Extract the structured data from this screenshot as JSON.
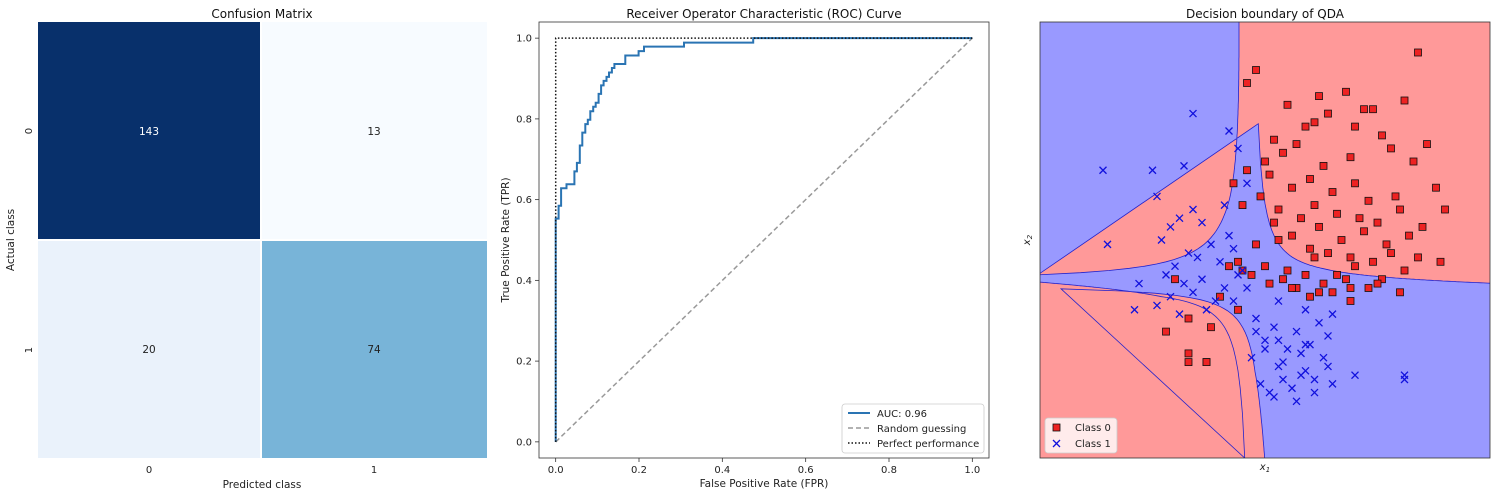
{
  "colors": {
    "dark_blue": "#08306b",
    "mid_blue": "#78b4d8",
    "light_blue": "#eaf2fb",
    "lightest_blue": "#f7fbff",
    "roc": "#2a74b3",
    "region_blue": "#9999ff",
    "region_red": "#ff9999"
  },
  "chart_data": [
    {
      "type": "heatmap",
      "title": "Confusion Matrix",
      "xlabel": "Predicted class",
      "ylabel": "Actual class",
      "x_ticklabels": [
        "0",
        "1"
      ],
      "y_ticklabels": [
        "0",
        "1"
      ],
      "matrix": [
        [
          143,
          13
        ],
        [
          20,
          74
        ]
      ]
    },
    {
      "type": "line",
      "title": "Receiver Operator Characteristic (ROC) Curve",
      "xlabel": "False Positive Rate (FPR)",
      "ylabel": "True Positive Rate (TPR)",
      "xlim": [
        -0.04,
        1.04
      ],
      "ylim": [
        -0.04,
        1.04
      ],
      "xticks": [
        "0.0",
        "0.2",
        "0.4",
        "0.6",
        "0.8",
        "1.0"
      ],
      "yticks": [
        "0.0",
        "0.2",
        "0.4",
        "0.6",
        "0.8",
        "1.0"
      ],
      "legend_position": "lower-right",
      "series": [
        {
          "name": "AUC: 0.96",
          "style": "solid",
          "x": [
            0,
            0,
            0.007,
            0.007,
            0.013,
            0.013,
            0.026,
            0.026,
            0.045,
            0.045,
            0.051,
            0.051,
            0.058,
            0.058,
            0.064,
            0.064,
            0.071,
            0.071,
            0.077,
            0.077,
            0.083,
            0.083,
            0.09,
            0.09,
            0.096,
            0.096,
            0.103,
            0.103,
            0.109,
            0.109,
            0.115,
            0.115,
            0.122,
            0.122,
            0.128,
            0.128,
            0.135,
            0.135,
            0.141,
            0.141,
            0.154,
            0.154,
            0.167,
            0.167,
            0.199,
            0.199,
            0.212,
            0.212,
            0.25,
            0.25,
            0.308,
            0.308,
            0.474,
            0.474,
            1.0
          ],
          "y": [
            0,
            0.553,
            0.553,
            0.585,
            0.585,
            0.628,
            0.628,
            0.638,
            0.638,
            0.67,
            0.67,
            0.691,
            0.691,
            0.734,
            0.734,
            0.766,
            0.766,
            0.787,
            0.787,
            0.798,
            0.798,
            0.819,
            0.819,
            0.83,
            0.83,
            0.84,
            0.84,
            0.862,
            0.862,
            0.883,
            0.883,
            0.894,
            0.894,
            0.904,
            0.904,
            0.915,
            0.915,
            0.926,
            0.926,
            0.936,
            0.936,
            0.936,
            0.936,
            0.957,
            0.957,
            0.968,
            0.968,
            0.979,
            0.979,
            0.979,
            0.979,
            0.989,
            0.989,
            1.0,
            1.0
          ]
        },
        {
          "name": "Random guessing",
          "style": "dashed",
          "x": [
            0,
            1
          ],
          "y": [
            0,
            1
          ]
        },
        {
          "name": "Perfect performance",
          "style": "dotted",
          "x": [
            0,
            0,
            1
          ],
          "y": [
            0,
            1,
            1
          ]
        }
      ]
    },
    {
      "type": "scatter",
      "title": "Decision boundary of QDA",
      "xlabel": "x",
      "xlabel_sub": "1",
      "ylabel": "x",
      "ylabel_sub": "2",
      "xlim": [
        0,
        10
      ],
      "ylim": [
        0,
        10
      ],
      "boundary_center": [
        4.7,
        4.0
      ],
      "legend_position": "lower-left",
      "series": [
        {
          "name": "Class 0",
          "marker": "square",
          "x": [
            8.4,
            4.6,
            4.8,
            6.2,
            6.1,
            6.8,
            7.4,
            7.0,
            5.5,
            6.4,
            5.2,
            5.9,
            7.2,
            7.6,
            8.1,
            5.0,
            5.4,
            5.7,
            6.3,
            6.9,
            7.8,
            8.3,
            8.6,
            4.3,
            4.6,
            5.1,
            5.6,
            6.0,
            6.5,
            7.0,
            7.3,
            7.9,
            8.8,
            9.0,
            4.5,
            4.9,
            5.3,
            5.8,
            6.1,
            6.6,
            7.1,
            7.5,
            8.0,
            8.5,
            5.2,
            5.6,
            6.2,
            6.7,
            7.2,
            7.7,
            8.2,
            4.8,
            5.3,
            6.0,
            6.4,
            6.9,
            7.4,
            7.8,
            8.4,
            4.4,
            5.0,
            5.5,
            6.1,
            6.6,
            7.0,
            7.6,
            8.1,
            8.9,
            4.2,
            4.7,
            5.4,
            5.9,
            6.3,
            6.8,
            7.3,
            5.7,
            6.2,
            6.9,
            7.5,
            8.0,
            4.5,
            5.1,
            5.6,
            6.0,
            6.5,
            6.9,
            3.0,
            4.0,
            4.4,
            3.3,
            3.8,
            2.8,
            3.3,
            3.7,
            3.3,
            3.7
          ],
          "y": [
            9.3,
            8.6,
            8.9,
            8.3,
            7.7,
            8.4,
            8.0,
            7.6,
            8.1,
            7.9,
            7.3,
            7.6,
            8.0,
            7.4,
            8.2,
            6.8,
            7.0,
            7.2,
            6.7,
            6.9,
            7.1,
            6.8,
            7.2,
            6.3,
            6.6,
            6.5,
            6.2,
            6.4,
            6.1,
            6.3,
            5.9,
            6.0,
            6.2,
            5.7,
            5.8,
            6.0,
            5.7,
            5.5,
            5.8,
            5.6,
            5.5,
            5.4,
            5.7,
            5.3,
            5.4,
            5.1,
            5.3,
            5.0,
            5.2,
            4.9,
            5.1,
            4.9,
            5.0,
            4.8,
            4.7,
            4.6,
            4.5,
            4.7,
            4.6,
            4.5,
            4.4,
            4.3,
            4.6,
            4.2,
            4.4,
            4.1,
            4.3,
            4.5,
            4.4,
            4.2,
            4.1,
            4.2,
            4.0,
            4.1,
            3.9,
            3.9,
            3.8,
            3.9,
            4.0,
            3.8,
            4.3,
            4.0,
            3.9,
            3.7,
            3.8,
            3.6,
            4.1,
            3.7,
            3.4,
            3.2,
            3.0,
            2.9,
            2.2,
            2.2,
            2.4,
            2.2
          ]
        },
        {
          "name": "Class 1",
          "marker": "x",
          "x": [
            1.4,
            2.5,
            3.2,
            2.6,
            1.5,
            3.4,
            3.6,
            4.1,
            4.2,
            3.1,
            2.9,
            2.7,
            3.3,
            3.8,
            4.3,
            3.0,
            3.5,
            4.0,
            4.5,
            2.8,
            3.2,
            3.6,
            4.1,
            4.4,
            2.2,
            2.9,
            3.4,
            3.9,
            4.6,
            2.1,
            2.6,
            3.1,
            3.7,
            4.3,
            4.8,
            5.2,
            5.7,
            6.2,
            5.0,
            5.5,
            6.0,
            6.4,
            4.7,
            5.3,
            5.8,
            4.9,
            5.4,
            5.9,
            6.5,
            7.0,
            5.1,
            5.6,
            6.1,
            4.8,
            5.3,
            5.9,
            6.3,
            5.0,
            5.4,
            5.8,
            6.4,
            5.2,
            5.7,
            6.1,
            5.3,
            5.9,
            6.5,
            8.1,
            8.1,
            4.6,
            4.4,
            4.2,
            3.4
          ],
          "y": [
            6.6,
            6.6,
            6.7,
            6.0,
            4.9,
            5.7,
            5.4,
            5.8,
            5.1,
            5.5,
            5.3,
            5.0,
            4.7,
            4.9,
            4.8,
            4.4,
            4.6,
            4.5,
            4.3,
            4.2,
            4.0,
            4.1,
            3.9,
            4.2,
            4.0,
            3.7,
            3.8,
            3.6,
            3.9,
            3.4,
            3.5,
            3.3,
            3.4,
            3.6,
            3.2,
            3.0,
            2.9,
            3.1,
            2.7,
            2.5,
            2.6,
            2.8,
            2.3,
            2.1,
            2.4,
            1.7,
            1.8,
            2.0,
            1.7,
            1.9,
            1.5,
            1.6,
            1.8,
            2.9,
            2.7,
            2.6,
            2.3,
            2.5,
            2.2,
            1.9,
            2.1,
            1.4,
            1.3,
            1.5,
            3.6,
            3.4,
            3.3,
            1.9,
            1.8,
            6.3,
            7.1,
            7.5,
            7.9
          ]
        }
      ]
    }
  ]
}
